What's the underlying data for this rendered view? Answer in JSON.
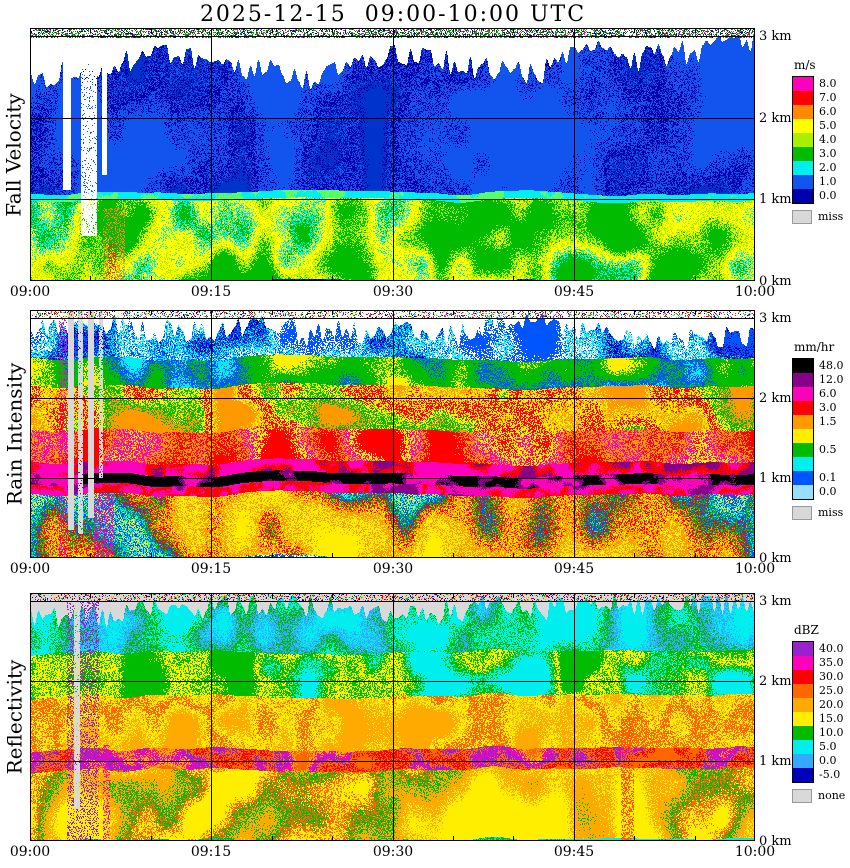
{
  "title": "2025-12-15  09:00-10:00 UTC",
  "time_labels": [
    "09:00",
    "09:15",
    "09:30",
    "09:45",
    "10:00"
  ],
  "height_ticks": [
    {
      "label": "3 km",
      "z": 3
    },
    {
      "label": "2 km",
      "z": 2
    },
    {
      "label": "1 km",
      "z": 1
    },
    {
      "label": "0 km",
      "z": 0
    }
  ],
  "chart_data": [
    {
      "type": "heatmap",
      "title": "Fall Velocity",
      "seed": 3,
      "x_axis": {
        "ticks": [
          "09:00",
          "09:15",
          "09:30",
          "09:45",
          "10:00"
        ],
        "minor_tick_minutes": 5
      },
      "y_axis": {
        "unit": "km",
        "ticks": [
          3,
          2,
          1,
          0
        ],
        "range": [
          0,
          3.1
        ]
      },
      "legend": {
        "unit": "m/s",
        "cells": [
          {
            "color": "#ff00bb",
            "label": "8.0"
          },
          {
            "color": "#ff0000",
            "label": "7.0"
          },
          {
            "color": "#ff8800",
            "label": "6.0"
          },
          {
            "color": "#ffff00",
            "label": "5.0"
          },
          {
            "color": "#aaee00",
            "label": "4.0"
          },
          {
            "color": "#00bb00",
            "label": "3.0"
          },
          {
            "color": "#00eeee",
            "label": "2.0"
          },
          {
            "color": "#1155ee",
            "label": "1.0"
          },
          {
            "color": "#0000aa",
            "label": "0.0"
          }
        ],
        "missing": {
          "color": "#d8d8d8",
          "label": "miss"
        }
      },
      "structure": {
        "background": "#ffffff",
        "echo_top": {
          "base": 2.72,
          "variation": 0.33,
          "min": 2.05,
          "max": 3.02
        },
        "bands": [
          {
            "zmin": 0,
            "zmax": 1.0,
            "palette": [
              "#00bb00",
              "#00bb00",
              "#00bb00",
              "#aaee00",
              "#ffff00",
              "#ffff00",
              "#00eeee",
              "#00bb00"
            ],
            "fx": 0.022,
            "fz": 1.4,
            "speckle": 0.3
          },
          {
            "zmin": 1.0,
            "zmax": 1.09,
            "palette": [
              "#00eeee",
              "#00eeee",
              "#55ff66"
            ],
            "fx": 0.05,
            "fz": 6,
            "speckle": 0.2
          },
          {
            "zmin": 1.09,
            "zmax": 3.2,
            "palette": [
              "#1155ee",
              "#1155ee",
              "#1155ee",
              "#1155ee",
              "#0000aa",
              "#1155ee",
              "#0000aa",
              "#0033cc"
            ],
            "fx": 0.02,
            "fz": 1.1,
            "speckle": 0.4
          }
        ],
        "columns": [
          {
            "t0": 0.045,
            "t1": 0.056,
            "zmin": 1.12,
            "color": "#ffffff",
            "density": 1
          },
          {
            "t0": 0.07,
            "t1": 0.092,
            "zmin": 0.55,
            "color": "#ffffff",
            "density": 0.9
          },
          {
            "t0": 0.099,
            "t1": 0.106,
            "zmin": 1.3,
            "color": "#ffffff",
            "density": 1
          },
          {
            "t0": 0.1,
            "t1": 0.13,
            "zmin": 0,
            "zmax": 0.9,
            "color": "#ff8800",
            "density": 0.35
          },
          {
            "t0": 0.107,
            "t1": 0.118,
            "zmin": 0,
            "zmax": 0.45,
            "color": "#ff2200",
            "density": 0.3
          }
        ],
        "top_strip": {
          "zmin": 2.98,
          "density": 0.5,
          "colors": [
            "#007700",
            "#00aa00",
            "#004400",
            "#ff00bb",
            "#0000aa",
            "#00bb00"
          ]
        }
      }
    },
    {
      "type": "heatmap",
      "title": "Rain Intensity",
      "seed": 17,
      "x_axis": {
        "ticks": [
          "09:00",
          "09:15",
          "09:30",
          "09:45",
          "10:00"
        ],
        "minor_tick_minutes": 5
      },
      "y_axis": {
        "unit": "km",
        "ticks": [
          3,
          2,
          1,
          0
        ],
        "range": [
          0,
          3.1
        ]
      },
      "legend": {
        "unit": "mm/hr",
        "cells": [
          {
            "color": "#000000",
            "label": "48.0"
          },
          {
            "color": "#880088",
            "label": "12.0"
          },
          {
            "color": "#ff00bb",
            "label": "6.0"
          },
          {
            "color": "#ff0000",
            "label": "3.0"
          },
          {
            "color": "#ff9900",
            "label": "1.5"
          },
          {
            "color": "#ffee00",
            "label": ""
          },
          {
            "color": "#00bb00",
            "label": "0.5"
          },
          {
            "color": "#00eeee",
            "label": ""
          },
          {
            "color": "#0055ff",
            "label": "0.1"
          },
          {
            "color": "#99ddff",
            "label": "0.0"
          }
        ],
        "missing": {
          "color": "#d8d8d8",
          "label": "miss"
        }
      },
      "structure": {
        "background": "#ffffff",
        "echo_top": {
          "base": 2.8,
          "variation": 0.3,
          "min": 2.2,
          "max": 3.04
        },
        "bands": [
          {
            "zmin": 0,
            "zmax": 0.8,
            "palette": [
              "#ffee00",
              "#ff9900",
              "#ffee00",
              "#ff9900",
              "#ff0000",
              "#00bb00",
              "#0055ff",
              "#00eeee",
              "#ffee00",
              "#0055ff"
            ],
            "fx": 0.016,
            "fz": 0.8,
            "speckle": 0.3
          },
          {
            "zmin": 0.8,
            "zmax": 0.92,
            "palette": [
              "#ff00bb",
              "#ff0000",
              "#ff00bb",
              "#880088"
            ],
            "fx": 0.04,
            "fz": 4,
            "speckle": 0.2
          },
          {
            "zmin": 0.92,
            "zmax": 1.05,
            "palette": [
              "#000000",
              "#000000",
              "#000000",
              "#880088",
              "#ff00bb"
            ],
            "fx": 0.05,
            "fz": 5,
            "speckle": 0.15
          },
          {
            "zmin": 1.05,
            "zmax": 1.2,
            "palette": [
              "#ff00bb",
              "#ff00bb",
              "#ff0000",
              "#880088"
            ],
            "fx": 0.04,
            "fz": 4,
            "speckle": 0.2
          },
          {
            "zmin": 1.2,
            "zmax": 1.6,
            "palette": [
              "#ff0000",
              "#ff0000",
              "#ff9900",
              "#ff00bb",
              "#ffee00",
              "#ff0000"
            ],
            "fx": 0.02,
            "fz": 1.4,
            "speckle": 0.3
          },
          {
            "zmin": 1.6,
            "zmax": 2.15,
            "palette": [
              "#ff9900",
              "#ffee00",
              "#ff0000",
              "#ffee00",
              "#00bb00",
              "#ff9900"
            ],
            "fx": 0.02,
            "fz": 1.4,
            "speckle": 0.3
          },
          {
            "zmin": 2.15,
            "zmax": 2.5,
            "palette": [
              "#ffee00",
              "#00bb00",
              "#00bb00",
              "#0055ff",
              "#00eeee"
            ],
            "fx": 0.02,
            "fz": 1.6,
            "speckle": 0.3
          },
          {
            "zmin": 2.5,
            "zmax": 3.2,
            "palette": [
              "#0055ff",
              "#0000aa",
              "#0055ff",
              "#00eeee",
              "#ffffff",
              "#0055ff"
            ],
            "fx": 0.02,
            "fz": 1.4,
            "speckle": 0.4
          }
        ],
        "columns": [
          {
            "t0": 0.052,
            "t1": 0.06,
            "zmin": 0.35,
            "color": "#d8d8d8",
            "density": 1
          },
          {
            "t0": 0.066,
            "t1": 0.073,
            "zmin": 0.3,
            "color": "#d8d8d8",
            "density": 0.9
          },
          {
            "t0": 0.08,
            "t1": 0.087,
            "zmin": 0.5,
            "color": "#d8d8d8",
            "density": 1
          },
          {
            "t0": 0.095,
            "t1": 0.1,
            "zmin": 1.0,
            "color": "#d8d8d8",
            "density": 0.8
          },
          {
            "t0": 0.088,
            "t1": 0.115,
            "zmin": 0,
            "zmax": 0.8,
            "color": "#ff00bb",
            "density": 0.4
          },
          {
            "t0": 0.04,
            "t1": 0.05,
            "zmin": 0,
            "zmax": 3.0,
            "color": "#ff00bb",
            "density": 0.3
          }
        ],
        "top_strip": {
          "zmin": 2.99,
          "density": 0.3,
          "colors": [
            "#00eeee",
            "#ff0000",
            "#0000aa",
            "#00bb00",
            "#ff00bb",
            "#ffee00"
          ]
        }
      }
    },
    {
      "type": "heatmap",
      "title": "Reflectivity",
      "seed": 29,
      "x_axis": {
        "ticks": [
          "09:00",
          "09:15",
          "09:30",
          "09:45",
          "10:00"
        ],
        "minor_tick_minutes": 5
      },
      "y_axis": {
        "unit": "km",
        "ticks": [
          3,
          2,
          1,
          0
        ],
        "range": [
          0,
          3.1
        ]
      },
      "legend": {
        "unit": "dBZ",
        "cells": [
          {
            "color": "#9922cc",
            "label": "40.0"
          },
          {
            "color": "#ff00bb",
            "label": "35.0"
          },
          {
            "color": "#ff0000",
            "label": "30.0"
          },
          {
            "color": "#ff6600",
            "label": "25.0"
          },
          {
            "color": "#ffaa00",
            "label": "20.0"
          },
          {
            "color": "#ffee00",
            "label": "15.0"
          },
          {
            "color": "#00bb00",
            "label": "10.0"
          },
          {
            "color": "#00eeee",
            "label": "5.0"
          },
          {
            "color": "#33aaff",
            "label": "0.0"
          },
          {
            "color": "#0000bb",
            "label": "-5.0"
          }
        ],
        "missing": {
          "color": "#d9d9d9",
          "label": "none"
        }
      },
      "structure": {
        "background": "#d9d9d9",
        "echo_top": {
          "base": 2.92,
          "variation": 0.2,
          "min": 2.35,
          "max": 3.06
        },
        "bands": [
          {
            "zmin": 0,
            "zmax": 0.88,
            "palette": [
              "#ffee00",
              "#ffee00",
              "#ffee00",
              "#ffaa00",
              "#ffaa00",
              "#00bb00",
              "#ff6600",
              "#ffee00"
            ],
            "fx": 0.018,
            "fz": 1.1,
            "speckle": 0.25
          },
          {
            "zmin": 0.88,
            "zmax": 1.14,
            "palette": [
              "#ff6600",
              "#ff0000",
              "#ff6600",
              "#9922cc",
              "#ff00bb",
              "#ffaa00",
              "#ff6600"
            ],
            "fx": 0.03,
            "fz": 2.5,
            "speckle": 0.25
          },
          {
            "zmin": 1.14,
            "zmax": 1.8,
            "palette": [
              "#ffaa00",
              "#ffee00",
              "#ff6600",
              "#ffee00",
              "#ffaa00"
            ],
            "fx": 0.02,
            "fz": 1.4,
            "speckle": 0.3
          },
          {
            "zmin": 1.8,
            "zmax": 2.35,
            "palette": [
              "#00bb00",
              "#00bb00",
              "#ffee00",
              "#00bb00",
              "#00eeee"
            ],
            "fx": 0.02,
            "fz": 1.5,
            "speckle": 0.3
          },
          {
            "zmin": 2.35,
            "zmax": 3.2,
            "palette": [
              "#00eeee",
              "#00eeee",
              "#00bb00",
              "#33aaff",
              "#00eeee"
            ],
            "fx": 0.02,
            "fz": 1.5,
            "speckle": 0.35
          }
        ],
        "columns": [
          {
            "t0": 0.05,
            "t1": 0.095,
            "zmin": 0,
            "zmax": 3.0,
            "color": "#9922cc",
            "density": 0.3
          },
          {
            "t0": 0.06,
            "t1": 0.068,
            "zmin": 0.4,
            "color": "#d9d9d9",
            "density": 0.9
          },
          {
            "t0": 0.1,
            "t1": 0.11,
            "zmin": 0,
            "zmax": 1.2,
            "color": "#ff00bb",
            "density": 0.3
          },
          {
            "t0": 0.815,
            "t1": 0.832,
            "zmin": 0,
            "zmax": 1.55,
            "color": "#ff5500",
            "density": 0.45
          }
        ],
        "top_strip": {
          "zmin": 2.99,
          "density": 0.3,
          "colors": [
            "#00bb00",
            "#ff0000",
            "#0000aa",
            "#880088",
            "#ffaa00"
          ]
        }
      }
    }
  ]
}
